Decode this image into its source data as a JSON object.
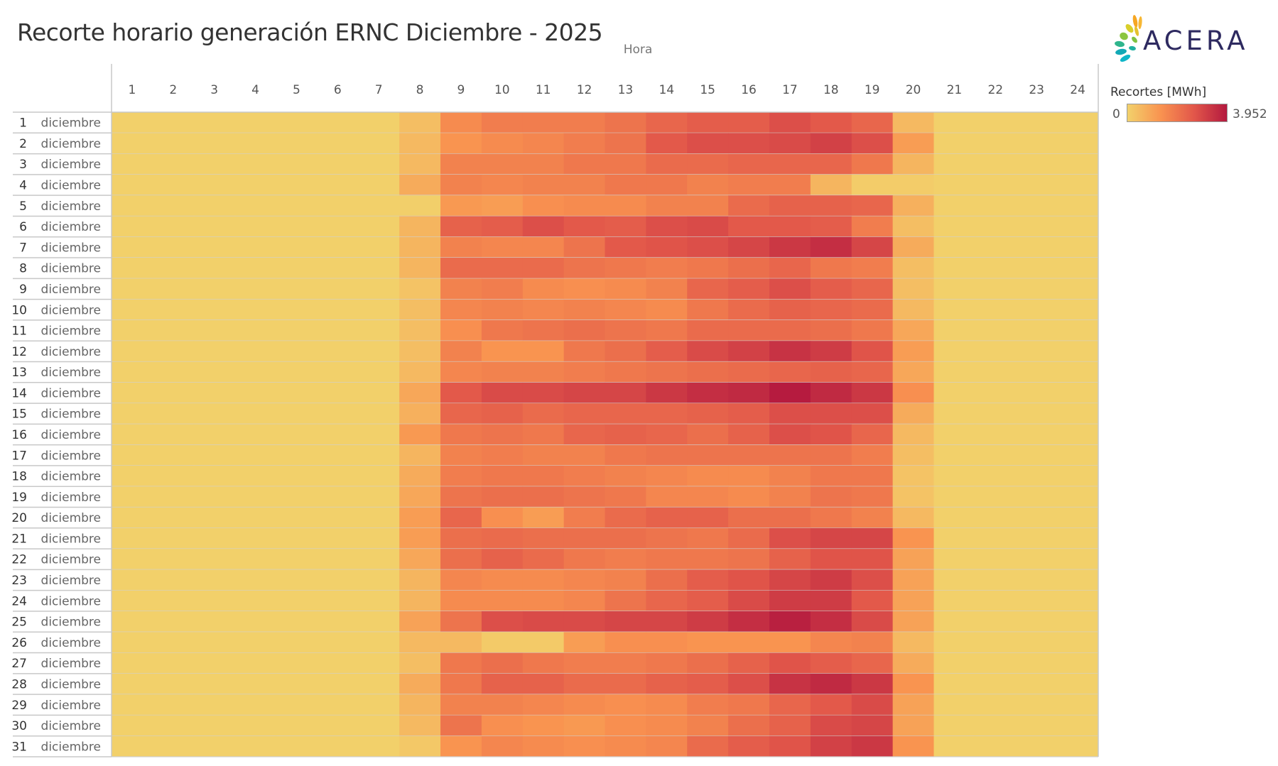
{
  "title": "Recorte horario generación ERNC Diciembre - 2025",
  "logo_text": "ACERA",
  "chart_data": {
    "type": "heatmap",
    "title": "Recorte horario generación ERNC Diciembre - 2025",
    "xlabel": "Hora",
    "ylabel": "",
    "x": [
      1,
      2,
      3,
      4,
      5,
      6,
      7,
      8,
      9,
      10,
      11,
      12,
      13,
      14,
      15,
      16,
      17,
      18,
      19,
      20,
      21,
      22,
      23,
      24
    ],
    "month_label": "diciembre",
    "y": [
      1,
      2,
      3,
      4,
      5,
      6,
      7,
      8,
      9,
      10,
      11,
      12,
      13,
      14,
      15,
      16,
      17,
      18,
      19,
      20,
      21,
      22,
      23,
      24,
      25,
      26,
      27,
      28,
      29,
      30,
      31
    ],
    "legend": {
      "title": "Recortes [MWh]",
      "min_label": "0",
      "max_label": "3.952",
      "min": 0,
      "max": 3.952,
      "placement": "right"
    },
    "color_scale": [
      "#f2d16b",
      "#f99350",
      "#e2574a",
      "#b4193f"
    ],
    "off_value": 0.03,
    "values_h8_to_h20": [
      [
        0.4,
        1.5,
        1.8,
        1.8,
        1.8,
        2.0,
        2.3,
        2.5,
        2.5,
        2.8,
        2.6,
        2.3,
        0.5
      ],
      [
        0.5,
        1.3,
        1.5,
        1.6,
        1.8,
        2.0,
        2.6,
        2.8,
        2.8,
        2.9,
        3.1,
        2.8,
        1.1
      ],
      [
        0.5,
        1.7,
        1.7,
        1.7,
        1.9,
        1.9,
        2.2,
        2.2,
        2.3,
        2.3,
        2.3,
        1.9,
        0.6
      ],
      [
        0.8,
        1.7,
        1.6,
        1.7,
        1.7,
        1.9,
        1.9,
        1.7,
        1.8,
        1.8,
        0.6,
        0.1,
        0.1
      ],
      [
        0.05,
        1.2,
        1.1,
        1.4,
        1.5,
        1.5,
        1.7,
        1.7,
        2.2,
        2.4,
        2.4,
        2.3,
        0.7
      ],
      [
        0.6,
        2.4,
        2.5,
        2.8,
        2.6,
        2.5,
        2.8,
        2.9,
        2.6,
        2.6,
        2.5,
        1.8,
        0.4
      ],
      [
        0.6,
        1.7,
        1.6,
        1.6,
        2.0,
        2.6,
        2.7,
        2.8,
        3.0,
        3.3,
        3.5,
        3.0,
        0.8
      ],
      [
        0.6,
        2.2,
        2.2,
        2.2,
        2.0,
        1.9,
        1.8,
        1.9,
        2.1,
        2.3,
        1.9,
        1.8,
        0.4
      ],
      [
        0.3,
        1.7,
        1.8,
        1.5,
        1.4,
        1.5,
        1.7,
        2.3,
        2.5,
        2.8,
        2.5,
        2.3,
        0.4
      ],
      [
        0.4,
        1.6,
        1.7,
        1.6,
        1.7,
        1.6,
        1.5,
        1.9,
        2.2,
        2.4,
        2.3,
        2.2,
        0.5
      ],
      [
        0.4,
        1.4,
        1.9,
        2.0,
        2.1,
        2.0,
        1.9,
        2.2,
        2.2,
        2.2,
        2.1,
        1.9,
        0.9
      ],
      [
        0.4,
        1.7,
        1.3,
        1.3,
        1.9,
        2.1,
        2.5,
        2.9,
        3.1,
        3.4,
        3.2,
        2.7,
        1.1
      ],
      [
        0.5,
        1.6,
        1.7,
        1.7,
        1.8,
        1.9,
        2.0,
        2.1,
        2.2,
        2.3,
        2.4,
        2.3,
        0.9
      ],
      [
        0.9,
        2.6,
        2.9,
        2.9,
        3.0,
        3.0,
        3.3,
        3.5,
        3.6,
        3.9,
        3.6,
        3.3,
        1.4
      ],
      [
        0.7,
        2.3,
        2.4,
        2.2,
        2.3,
        2.3,
        2.3,
        2.4,
        2.5,
        2.8,
        2.8,
        2.8,
        0.8
      ],
      [
        1.2,
        1.9,
        2.0,
        1.9,
        2.3,
        2.4,
        2.3,
        2.1,
        2.4,
        2.8,
        2.7,
        2.3,
        0.5
      ],
      [
        0.6,
        1.7,
        1.8,
        1.7,
        1.7,
        1.9,
        2.0,
        2.0,
        2.0,
        2.0,
        2.0,
        1.8,
        0.4
      ],
      [
        0.8,
        1.8,
        1.9,
        1.9,
        1.8,
        1.7,
        1.6,
        1.5,
        1.5,
        1.7,
        1.9,
        1.9,
        0.3
      ],
      [
        0.9,
        2.0,
        2.1,
        2.1,
        2.0,
        1.9,
        1.6,
        1.6,
        1.5,
        1.7,
        2.0,
        1.9,
        0.3
      ],
      [
        1.1,
        2.3,
        1.4,
        1.1,
        1.8,
        2.2,
        2.4,
        2.4,
        2.1,
        2.1,
        1.9,
        1.7,
        0.5
      ],
      [
        1.1,
        2.1,
        2.2,
        2.1,
        2.1,
        2.1,
        2.0,
        1.9,
        2.2,
        2.8,
        3.0,
        3.0,
        1.3
      ],
      [
        0.9,
        2.1,
        2.4,
        2.2,
        1.9,
        1.8,
        1.9,
        1.9,
        2.0,
        2.4,
        2.7,
        2.7,
        1.0
      ],
      [
        0.6,
        1.6,
        1.5,
        1.5,
        1.6,
        1.7,
        2.1,
        2.5,
        2.7,
        3.0,
        3.2,
        2.8,
        1.0
      ],
      [
        0.6,
        1.5,
        1.5,
        1.5,
        1.6,
        2.0,
        2.3,
        2.5,
        2.9,
        3.2,
        3.2,
        2.6,
        1.0
      ],
      [
        1.0,
        2.0,
        2.8,
        2.9,
        2.9,
        3.0,
        3.0,
        3.2,
        3.5,
        3.8,
        3.5,
        2.9,
        1.0
      ],
      [
        0.5,
        0.5,
        0.15,
        0.15,
        1.1,
        1.4,
        1.4,
        1.3,
        1.3,
        1.3,
        1.6,
        1.7,
        0.5
      ],
      [
        0.4,
        1.9,
        2.1,
        1.9,
        1.8,
        1.8,
        1.9,
        2.1,
        2.4,
        2.7,
        2.5,
        2.3,
        0.8
      ],
      [
        0.8,
        1.9,
        2.4,
        2.4,
        2.2,
        2.2,
        2.4,
        2.5,
        2.8,
        3.4,
        3.6,
        3.3,
        1.3
      ],
      [
        0.6,
        1.7,
        1.7,
        1.6,
        1.5,
        1.4,
        1.5,
        1.8,
        1.9,
        2.3,
        2.6,
        2.9,
        1.0
      ],
      [
        0.5,
        2.0,
        1.4,
        1.3,
        1.2,
        1.4,
        1.5,
        1.7,
        2.1,
        2.4,
        2.9,
        3.0,
        1.0
      ],
      [
        0.2,
        1.3,
        1.6,
        1.5,
        1.4,
        1.5,
        1.6,
        2.2,
        2.5,
        2.7,
        3.1,
        3.3,
        1.3
      ]
    ],
    "grid": false
  }
}
